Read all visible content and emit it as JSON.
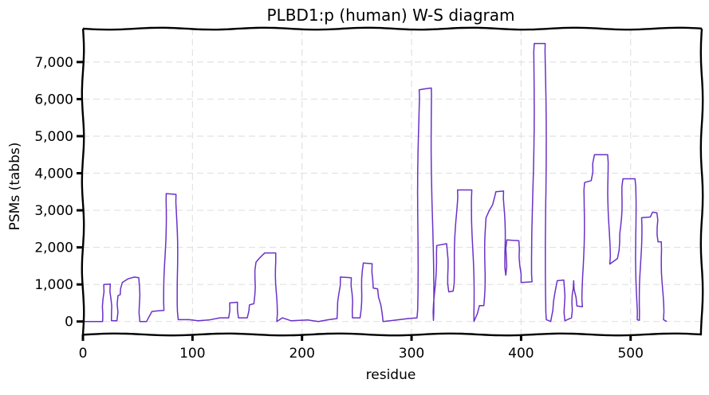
{
  "chart_data": {
    "type": "line",
    "title": "PLBD1:p (human) W-S diagram",
    "xlabel": "residue",
    "ylabel": "PSMs (tabbs)",
    "xlim": [
      0,
      565
    ],
    "ylim": [
      -350,
      7900
    ],
    "grid": true,
    "x_ticks": [
      {
        "value": 0,
        "label": "0"
      },
      {
        "value": 100,
        "label": "100"
      },
      {
        "value": 200,
        "label": "200"
      },
      {
        "value": 300,
        "label": "300"
      },
      {
        "value": 400,
        "label": "400"
      },
      {
        "value": 500,
        "label": "500"
      }
    ],
    "y_ticks": [
      {
        "value": 0,
        "label": "0"
      },
      {
        "value": 1000,
        "label": "1,000"
      },
      {
        "value": 2000,
        "label": "2,000"
      },
      {
        "value": 3000,
        "label": "3,000"
      },
      {
        "value": 4000,
        "label": "4,000"
      },
      {
        "value": 5000,
        "label": "5,000"
      },
      {
        "value": 6000,
        "label": "6,000"
      },
      {
        "value": 7000,
        "label": "7,000"
      }
    ],
    "series": [
      {
        "color": "#6a32c8",
        "points": [
          [
            0,
            0
          ],
          [
            18,
            0
          ],
          [
            19,
            1000
          ],
          [
            25,
            1010
          ],
          [
            26,
            20
          ],
          [
            31,
            20
          ],
          [
            32,
            700
          ],
          [
            34,
            720
          ],
          [
            36,
            1050
          ],
          [
            41,
            1150
          ],
          [
            47,
            1200
          ],
          [
            51,
            1180
          ],
          [
            52,
            0
          ],
          [
            58,
            0
          ],
          [
            63,
            270
          ],
          [
            74,
            300
          ],
          [
            76,
            3450
          ],
          [
            85,
            3430
          ],
          [
            87,
            50
          ],
          [
            97,
            50
          ],
          [
            105,
            20
          ],
          [
            115,
            40
          ],
          [
            125,
            100
          ],
          [
            133,
            100
          ],
          [
            134,
            500
          ],
          [
            141,
            520
          ],
          [
            142,
            100
          ],
          [
            148,
            100
          ],
          [
            150,
            100
          ],
          [
            152,
            450
          ],
          [
            156,
            480
          ],
          [
            158,
            1600
          ],
          [
            166,
            1850
          ],
          [
            176,
            1850
          ],
          [
            177,
            0
          ],
          [
            182,
            100
          ],
          [
            190,
            20
          ],
          [
            205,
            40
          ],
          [
            215,
            0
          ],
          [
            232,
            80
          ],
          [
            235,
            1200
          ],
          [
            245,
            1180
          ],
          [
            246,
            100
          ],
          [
            253,
            100
          ],
          [
            256,
            1580
          ],
          [
            264,
            1560
          ],
          [
            265,
            900
          ],
          [
            269,
            880
          ],
          [
            274,
            0
          ],
          [
            297,
            80
          ],
          [
            305,
            100
          ],
          [
            307,
            6250
          ],
          [
            318,
            6300
          ],
          [
            320,
            30
          ],
          [
            323,
            2050
          ],
          [
            332,
            2100
          ],
          [
            334,
            800
          ],
          [
            338,
            820
          ],
          [
            342,
            3550
          ],
          [
            355,
            3550
          ],
          [
            357,
            0
          ],
          [
            362,
            430
          ],
          [
            366,
            430
          ],
          [
            368,
            2800
          ],
          [
            371,
            3000
          ],
          [
            374,
            3150
          ],
          [
            377,
            3500
          ],
          [
            384,
            3520
          ],
          [
            386,
            1250
          ],
          [
            387,
            2200
          ],
          [
            398,
            2180
          ],
          [
            400,
            1050
          ],
          [
            410,
            1070
          ],
          [
            412,
            7500
          ],
          [
            422,
            7500
          ],
          [
            423,
            50
          ],
          [
            427,
            0
          ],
          [
            429,
            300
          ],
          [
            431,
            800
          ],
          [
            433,
            1100
          ],
          [
            439,
            1120
          ],
          [
            440,
            20
          ],
          [
            446,
            100
          ],
          [
            448,
            1100
          ],
          [
            451,
            420
          ],
          [
            456,
            400
          ],
          [
            458,
            3750
          ],
          [
            464,
            3800
          ],
          [
            467,
            4500
          ],
          [
            479,
            4500
          ],
          [
            481,
            1550
          ],
          [
            488,
            1700
          ],
          [
            490,
            2150
          ],
          [
            493,
            3850
          ],
          [
            504,
            3850
          ],
          [
            506,
            50
          ],
          [
            508,
            30
          ],
          [
            510,
            2800
          ],
          [
            518,
            2820
          ],
          [
            520,
            2950
          ],
          [
            524,
            2930
          ],
          [
            525,
            2150
          ],
          [
            528,
            2150
          ],
          [
            530,
            50
          ],
          [
            533,
            0
          ]
        ]
      }
    ]
  }
}
